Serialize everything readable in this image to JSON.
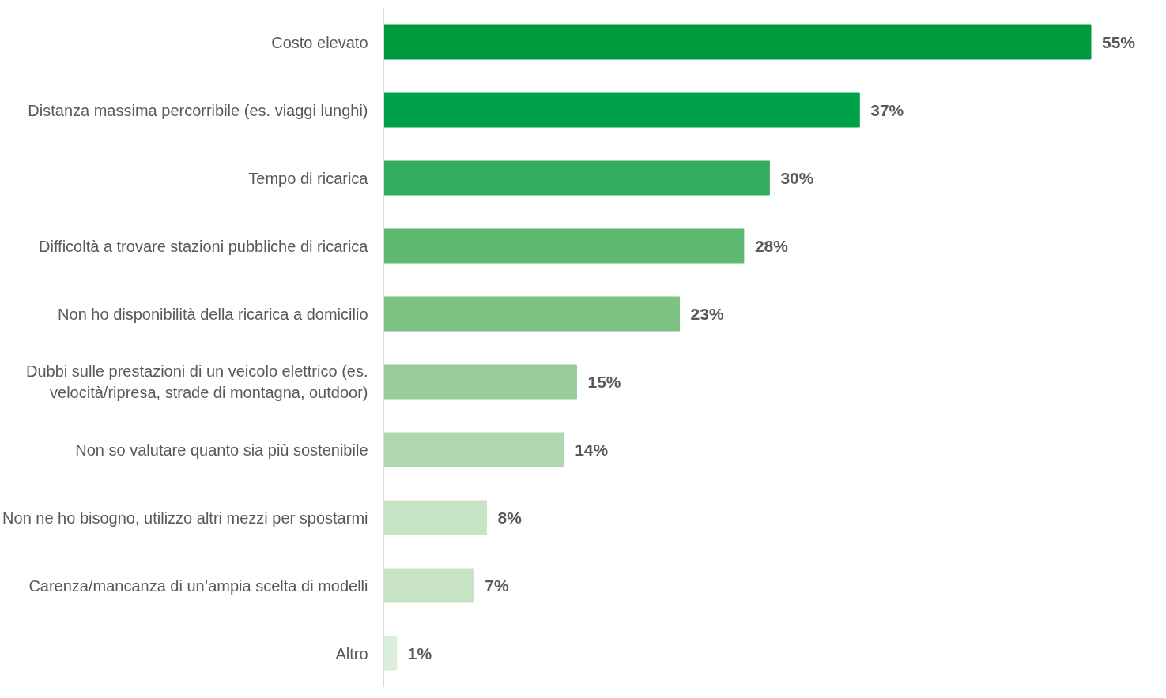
{
  "chart_data": {
    "type": "bar",
    "orientation": "horizontal",
    "categories": [
      "Costo elevato",
      "Distanza massima percorribile (es. viaggi lunghi)",
      "Tempo di ricarica",
      "Difficoltà a trovare stazioni pubbliche di ricarica",
      "Non ho disponibilità della ricarica a domicilio",
      "Dubbi sulle prestazioni di un veicolo elettrico (es.\nvelocità/ripresa, strade di montagna, outdoor)",
      "Non so valutare quanto sia più sostenibile",
      "Non ne ho bisogno, utilizzo altri mezzi per spostarmi",
      "Carenza/mancanza di un’ampia scelta di modelli",
      "Altro"
    ],
    "values": [
      55,
      37,
      30,
      28,
      23,
      15,
      14,
      8,
      7,
      1
    ],
    "value_labels": [
      "55%",
      "37%",
      "30%",
      "28%",
      "23%",
      "15%",
      "14%",
      "8%",
      "7%",
      "1%"
    ],
    "colors": [
      "#009a3e",
      "#00a249",
      "#35ad5f",
      "#5db870",
      "#7ec283",
      "#98cc9a",
      "#b0d8b0",
      "#c7e3c5",
      "#c9e3c7",
      "#dbeedb"
    ],
    "grid": false
  }
}
